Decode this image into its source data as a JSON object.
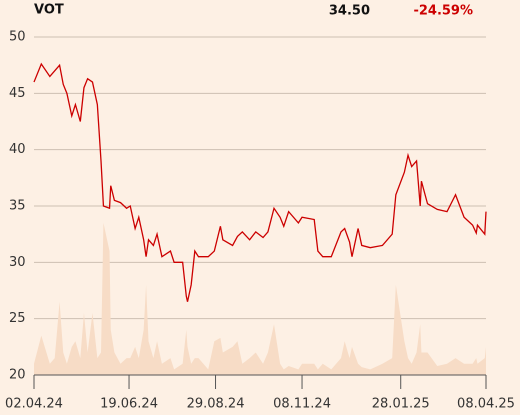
{
  "chart_data": {
    "type": "line",
    "title": "VOT",
    "last_price": "34.50",
    "change": "-24.59%",
    "change_color": "#cc0000",
    "color": "#cc0000",
    "volume_color": "#f7dcc6",
    "grid": true,
    "ylim": [
      20,
      50
    ],
    "yticks": [
      20,
      25,
      30,
      35,
      40,
      45,
      50
    ],
    "xlim": [
      "2024-04-02",
      "2025-04-08"
    ],
    "xticks": [
      {
        "value": "2024-04-02",
        "label": "02.04.24"
      },
      {
        "value": "2024-06-19",
        "label": "19.06.24"
      },
      {
        "value": "2024-08-29",
        "label": "29.08.24"
      },
      {
        "value": "2024-11-08",
        "label": "08.11.24"
      },
      {
        "value": "2025-01-28",
        "label": "28.01.25"
      },
      {
        "value": "2025-04-08",
        "label": "08.04.25"
      }
    ],
    "x": [
      "2024-04-02",
      "2024-04-08",
      "2024-04-15",
      "2024-04-19",
      "2024-04-23",
      "2024-04-26",
      "2024-04-29",
      "2024-05-03",
      "2024-05-06",
      "2024-05-10",
      "2024-05-13",
      "2024-05-16",
      "2024-05-20",
      "2024-05-24",
      "2024-05-27",
      "2024-05-29",
      "2024-06-03",
      "2024-06-04",
      "2024-06-07",
      "2024-06-12",
      "2024-06-17",
      "2024-06-20",
      "2024-06-24",
      "2024-06-27",
      "2024-07-01",
      "2024-07-03",
      "2024-07-05",
      "2024-07-09",
      "2024-07-12",
      "2024-07-16",
      "2024-07-23",
      "2024-07-26",
      "2024-08-02",
      "2024-08-05",
      "2024-08-06",
      "2024-08-09",
      "2024-08-12",
      "2024-08-15",
      "2024-08-23",
      "2024-08-28",
      "2024-09-02",
      "2024-09-04",
      "2024-09-12",
      "2024-09-16",
      "2024-09-20",
      "2024-09-26",
      "2024-10-01",
      "2024-10-07",
      "2024-10-11",
      "2024-10-16",
      "2024-10-21",
      "2024-10-24",
      "2024-10-28",
      "2024-11-05",
      "2024-11-08",
      "2024-11-18",
      "2024-11-21",
      "2024-11-25",
      "2024-12-02",
      "2024-12-10",
      "2024-12-13",
      "2024-12-17",
      "2024-12-19",
      "2024-12-24",
      "2024-12-27",
      "2025-01-03",
      "2025-01-13",
      "2025-01-21",
      "2025-01-24",
      "2025-01-31",
      "2025-02-03",
      "2025-02-06",
      "2025-02-10",
      "2025-02-13",
      "2025-02-14",
      "2025-02-19",
      "2025-02-27",
      "2025-03-07",
      "2025-03-14",
      "2025-03-21",
      "2025-03-28",
      "2025-03-31",
      "2025-04-01",
      "2025-04-07",
      "2025-04-08"
    ],
    "values": [
      46,
      47.6,
      46.5,
      47,
      47.5,
      45.8,
      45,
      43,
      44,
      42.5,
      45.5,
      46.3,
      46,
      44,
      39,
      35,
      34.8,
      36.8,
      35.5,
      35.3,
      34.8,
      35,
      33,
      34,
      32,
      30.5,
      32,
      31.5,
      32.5,
      30.5,
      31,
      30,
      30,
      27,
      26.5,
      28,
      31,
      30.5,
      30.5,
      31,
      33.2,
      32,
      31.5,
      32.3,
      32.7,
      32,
      32.7,
      32.2,
      32.7,
      34.8,
      34,
      33.2,
      34.5,
      33.5,
      34,
      33.8,
      31,
      30.5,
      30.5,
      32.7,
      33,
      31.8,
      30.5,
      33,
      31.5,
      31.3,
      31.5,
      32.5,
      36,
      38,
      39.5,
      38.5,
      39,
      35,
      37.2,
      35.2,
      34.7,
      34.5,
      36,
      34,
      33.3,
      32.6,
      33.3,
      32.5,
      34.5
    ],
    "volume": [
      21,
      23.5,
      21,
      21.5,
      26.5,
      22,
      21,
      22.5,
      23,
      21.5,
      25.5,
      22,
      25.5,
      21.5,
      22,
      33.5,
      31,
      24,
      22,
      21,
      21.5,
      21.5,
      22.5,
      21.5,
      24,
      28,
      23,
      21.5,
      23,
      21,
      21.5,
      20.5,
      21,
      24,
      22.5,
      21,
      21.5,
      21.5,
      20.5,
      23,
      23.3,
      22,
      22.5,
      23,
      21,
      21.5,
      22,
      21,
      22,
      24.5,
      21,
      20.5,
      20.8,
      20.5,
      21,
      21,
      20.5,
      21,
      20.5,
      21.5,
      23,
      21.5,
      22.5,
      21,
      20.7,
      20.5,
      21,
      21.5,
      28,
      23,
      21.5,
      21,
      22,
      24.5,
      22,
      22,
      20.8,
      21,
      21.5,
      21,
      21,
      21.5,
      21,
      21.5,
      22.5
    ]
  }
}
